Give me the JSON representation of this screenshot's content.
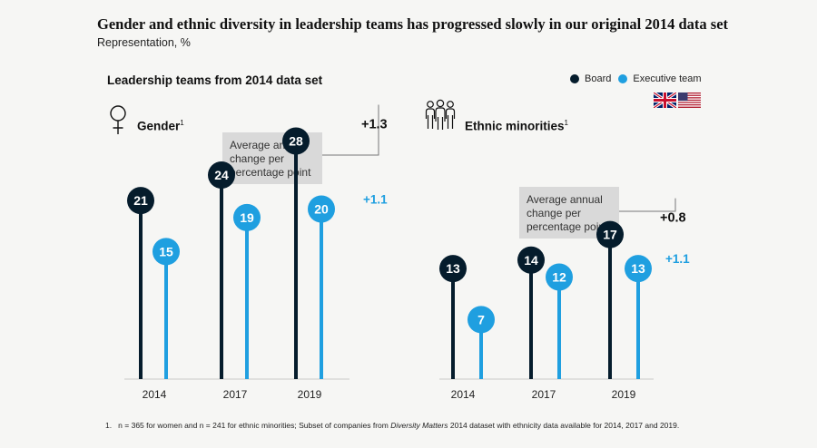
{
  "title": "Gender and ethnic diversity in leadership teams has progressed slowly in our original 2014 data set",
  "subtitle": "Representation, %",
  "section_title": "Leadership teams from 2014 data set",
  "legend": [
    {
      "label": "Board",
      "color": "#051c2c"
    },
    {
      "label": "Executive team",
      "color": "#1f9fe0"
    }
  ],
  "flags": [
    "uk-flag",
    "us-flag"
  ],
  "note": {
    "line1": "Average annual",
    "line2": "change per",
    "line3": "percentage point"
  },
  "footnote": {
    "prefix": "1.   n = 365 for women and n = 241 for ethnic minorities; Subset of companies from ",
    "italic": "Diversity Matters",
    "suffix": " 2014 dataset with ethnicity data available for 2014, 2017 and 2019."
  },
  "chart_data": [
    {
      "type": "lollipop",
      "title": "Gender",
      "footnote_ref": "1",
      "categories": [
        "2014",
        "2017",
        "2019"
      ],
      "series": [
        {
          "name": "Board",
          "values": [
            21,
            24,
            28
          ],
          "avg_annual_change": "+1.3"
        },
        {
          "name": "Executive team",
          "values": [
            15,
            19,
            20
          ],
          "avg_annual_change": "+1.1"
        }
      ],
      "ylim": [
        0,
        32
      ]
    },
    {
      "type": "lollipop",
      "title": "Ethnic minorities",
      "footnote_ref": "1",
      "categories": [
        "2014",
        "2017",
        "2019"
      ],
      "series": [
        {
          "name": "Board",
          "values": [
            13,
            14,
            17
          ],
          "avg_annual_change": "+0.8"
        },
        {
          "name": "Executive team",
          "values": [
            7,
            12,
            13
          ],
          "avg_annual_change": "+1.1"
        }
      ],
      "ylim": [
        0,
        32
      ]
    }
  ]
}
